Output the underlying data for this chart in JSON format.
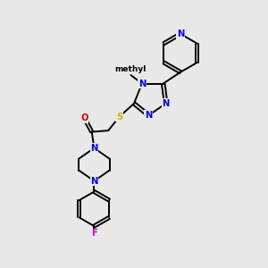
{
  "bg_color": "#e8e8e8",
  "bond_color": "#000000",
  "lw": 1.4,
  "atom_colors": {
    "N": "#0000ee",
    "S": "#bbbb00",
    "O": "#dd0000",
    "F": "#cc00cc",
    "C": "#000000"
  },
  "fs": 7.2,
  "fs_small": 6.5,
  "xlim": [
    0,
    10
  ],
  "ylim": [
    0,
    10
  ]
}
